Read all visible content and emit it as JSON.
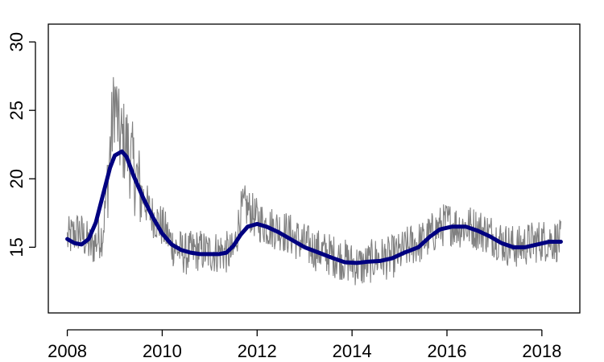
{
  "chart_data": {
    "type": "line",
    "title": "",
    "xlabel": "",
    "ylabel": "",
    "xlim": [
      2007.6,
      2018.8
    ],
    "ylim": [
      10.2,
      31.3
    ],
    "x_ticks": [
      2008,
      2010,
      2012,
      2014,
      2016,
      2018
    ],
    "x_tick_labels": [
      "2008",
      "2010",
      "2012",
      "2014",
      "2016",
      "2018"
    ],
    "y_ticks": [
      15,
      20,
      25,
      30
    ],
    "y_tick_labels": [
      "15",
      "20",
      "25",
      "30"
    ],
    "grid": false,
    "legend": "none",
    "series": [
      {
        "kind": "raw",
        "color": "#808080",
        "points": [
          [
            2008.0,
            15.6
          ],
          [
            2008.25,
            16.2
          ],
          [
            2008.5,
            15.0
          ],
          [
            2008.75,
            16.0
          ],
          [
            2008.9,
            22.0
          ],
          [
            2009.0,
            26.0
          ],
          [
            2009.1,
            23.0
          ],
          [
            2009.25,
            22.5
          ],
          [
            2009.5,
            19.5
          ],
          [
            2009.75,
            17.5
          ],
          [
            2010.0,
            16.5
          ],
          [
            2010.25,
            15.0
          ],
          [
            2010.5,
            14.5
          ],
          [
            2010.75,
            14.8
          ],
          [
            2011.0,
            14.6
          ],
          [
            2011.25,
            14.7
          ],
          [
            2011.5,
            14.5
          ],
          [
            2011.65,
            17.5
          ],
          [
            2011.75,
            18.0
          ],
          [
            2012.0,
            17.0
          ],
          [
            2012.25,
            16.5
          ],
          [
            2012.5,
            16.3
          ],
          [
            2012.75,
            15.8
          ],
          [
            2013.0,
            15.2
          ],
          [
            2013.25,
            14.8
          ],
          [
            2013.5,
            14.5
          ],
          [
            2013.75,
            14.2
          ],
          [
            2014.0,
            13.8
          ],
          [
            2014.25,
            13.6
          ],
          [
            2014.5,
            14.2
          ],
          [
            2014.75,
            14.2
          ],
          [
            2015.0,
            14.5
          ],
          [
            2015.25,
            15.2
          ],
          [
            2015.5,
            15.4
          ],
          [
            2015.75,
            16.2
          ],
          [
            2016.0,
            16.8
          ],
          [
            2016.25,
            16.5
          ],
          [
            2016.5,
            16.5
          ],
          [
            2016.75,
            16.2
          ],
          [
            2017.0,
            15.8
          ],
          [
            2017.25,
            15.2
          ],
          [
            2017.5,
            15.0
          ],
          [
            2017.75,
            15.3
          ],
          [
            2018.0,
            15.5
          ],
          [
            2018.25,
            15.5
          ],
          [
            2018.4,
            15.4
          ]
        ]
      },
      {
        "kind": "smooth",
        "color": "#000080",
        "points": [
          [
            2008.0,
            15.6
          ],
          [
            2008.15,
            15.3
          ],
          [
            2008.3,
            15.2
          ],
          [
            2008.45,
            15.6
          ],
          [
            2008.6,
            16.8
          ],
          [
            2008.75,
            18.8
          ],
          [
            2008.9,
            20.8
          ],
          [
            2009.0,
            21.7
          ],
          [
            2009.15,
            22.0
          ],
          [
            2009.25,
            21.6
          ],
          [
            2009.4,
            20.2
          ],
          [
            2009.6,
            18.6
          ],
          [
            2009.8,
            17.2
          ],
          [
            2010.0,
            16.0
          ],
          [
            2010.2,
            15.2
          ],
          [
            2010.4,
            14.8
          ],
          [
            2010.6,
            14.6
          ],
          [
            2010.8,
            14.5
          ],
          [
            2011.0,
            14.5
          ],
          [
            2011.2,
            14.5
          ],
          [
            2011.35,
            14.6
          ],
          [
            2011.5,
            15.1
          ],
          [
            2011.65,
            15.9
          ],
          [
            2011.8,
            16.5
          ],
          [
            2012.0,
            16.7
          ],
          [
            2012.2,
            16.5
          ],
          [
            2012.45,
            16.1
          ],
          [
            2012.7,
            15.6
          ],
          [
            2013.0,
            15.0
          ],
          [
            2013.3,
            14.6
          ],
          [
            2013.6,
            14.2
          ],
          [
            2013.85,
            13.9
          ],
          [
            2014.1,
            13.85
          ],
          [
            2014.35,
            13.95
          ],
          [
            2014.6,
            14.0
          ],
          [
            2014.85,
            14.2
          ],
          [
            2015.1,
            14.6
          ],
          [
            2015.4,
            15.0
          ],
          [
            2015.65,
            15.8
          ],
          [
            2015.85,
            16.3
          ],
          [
            2016.1,
            16.5
          ],
          [
            2016.4,
            16.5
          ],
          [
            2016.65,
            16.2
          ],
          [
            2016.9,
            15.8
          ],
          [
            2017.15,
            15.3
          ],
          [
            2017.4,
            15.0
          ],
          [
            2017.65,
            15.0
          ],
          [
            2017.9,
            15.2
          ],
          [
            2018.15,
            15.4
          ],
          [
            2018.4,
            15.4
          ]
        ]
      }
    ]
  }
}
